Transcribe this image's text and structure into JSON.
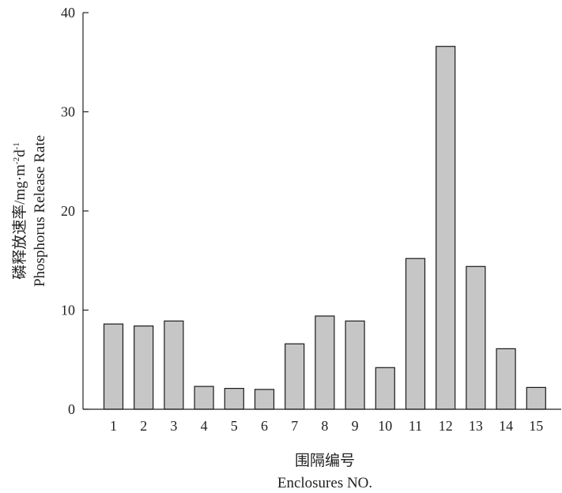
{
  "chart_data": {
    "type": "bar",
    "categories": [
      "1",
      "2",
      "3",
      "4",
      "5",
      "6",
      "7",
      "8",
      "9",
      "10",
      "11",
      "12",
      "13",
      "14",
      "15"
    ],
    "values": [
      8.6,
      8.4,
      8.9,
      2.3,
      2.1,
      2.0,
      6.6,
      9.4,
      8.9,
      4.2,
      15.2,
      36.6,
      14.4,
      6.1,
      2.2
    ],
    "ylim": [
      0,
      40
    ],
    "yticks": [
      "0",
      "10",
      "20",
      "30",
      "40"
    ],
    "xlabel_cn": "围隔编号",
    "xlabel_en": "Enclosures NO.",
    "ylabel_cn": "磷释放速率/mg·m",
    "ylabel_sup1": "-2",
    "ylabel_mid": "d",
    "ylabel_sup2": "-1",
    "ylabel_en": "Phosphorus Release Rate",
    "grid": false,
    "bar_color": "#c6c6c6",
    "edge_color": "#1a1a1a"
  }
}
